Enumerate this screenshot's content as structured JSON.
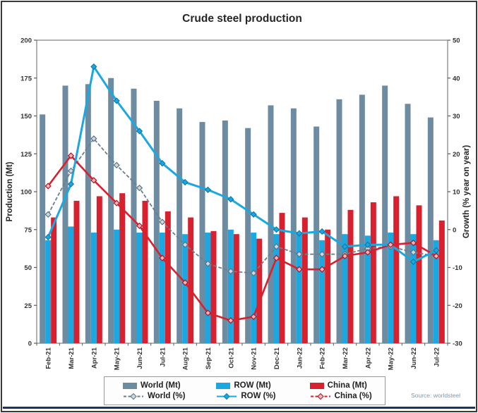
{
  "source": "Source: worldsteel",
  "chart_data": {
    "type": "combo",
    "title": "Crude steel production",
    "grid": false,
    "legend_position": "bottom",
    "categories": [
      "Feb-21",
      "Mar-21",
      "Apr-21",
      "May-21",
      "Jun-21",
      "Jul-21",
      "Aug-21",
      "Sep-21",
      "Oct-21",
      "Nov-21",
      "Dec-21",
      "Jan-22",
      "Feb-22",
      "Mar-22",
      "Apr-22",
      "May-22",
      "Jun-22",
      "Jul-22"
    ],
    "left_axis": {
      "label": "Production (Mt)",
      "min": 0,
      "max": 200,
      "ticks": [
        0,
        25,
        50,
        75,
        100,
        125,
        150,
        175,
        200
      ]
    },
    "right_axis": {
      "label": "Growth (% year on year)",
      "min": -30,
      "max": 50,
      "ticks": [
        -30,
        -20,
        -10,
        0,
        10,
        20,
        30,
        40,
        50
      ]
    },
    "series": [
      {
        "name": "World (Mt)",
        "type": "bar",
        "axis": "left",
        "color": "#6d8ba1",
        "values": [
          151,
          170,
          171,
          175,
          168,
          160,
          155,
          146,
          147,
          142,
          157,
          155,
          143,
          161,
          164,
          170,
          158,
          149
        ]
      },
      {
        "name": "ROW (Mt)",
        "type": "bar",
        "axis": "left",
        "color": "#1ba7e0",
        "values": [
          68,
          77,
          73,
          75,
          73,
          73,
          72,
          73,
          75,
          73,
          72,
          73,
          68,
          72,
          71,
          73,
          72,
          68
        ]
      },
      {
        "name": "China (Mt)",
        "type": "bar",
        "axis": "left",
        "color": "#d7212f",
        "values": [
          83,
          94,
          97,
          99,
          94,
          87,
          83,
          74,
          72,
          69,
          86,
          83,
          75,
          88,
          93,
          97,
          91,
          81
        ]
      },
      {
        "name": "World (%)",
        "type": "line",
        "axis": "right",
        "color": "#6b7f8e",
        "dashed": true,
        "marker_fill": "#ccd9e2",
        "marker_stroke": "#5d7282",
        "values": [
          4,
          15.5,
          24,
          17,
          11,
          2,
          -4,
          -9,
          -11,
          -11.5,
          -4.5,
          -6.5,
          -6.5,
          -6.5,
          -5,
          -4.5,
          -6,
          -7
        ]
      },
      {
        "name": "ROW (%)",
        "type": "line",
        "axis": "right",
        "color": "#1ba7e0",
        "dashed": false,
        "marker_fill": "#1ba7e0",
        "marker_stroke": "#117ba8",
        "values": [
          -2,
          12,
          43,
          34,
          26,
          17.5,
          12.5,
          10.5,
          8,
          4,
          0,
          -1,
          -0.5,
          -4.5,
          -4,
          -4,
          -8.5,
          -5.5
        ]
      },
      {
        "name": "China (%)",
        "type": "line",
        "axis": "right",
        "color": "#d7212f",
        "dashed": true,
        "marker_fill": "#f2b6bb",
        "marker_stroke": "#b5121f",
        "values": [
          11.5,
          19.5,
          13,
          7,
          1,
          -7.5,
          -14,
          -22,
          -24,
          -23,
          -7.5,
          -10.5,
          -10.5,
          -7,
          -6,
          -4,
          -3.5,
          -7
        ]
      }
    ]
  }
}
